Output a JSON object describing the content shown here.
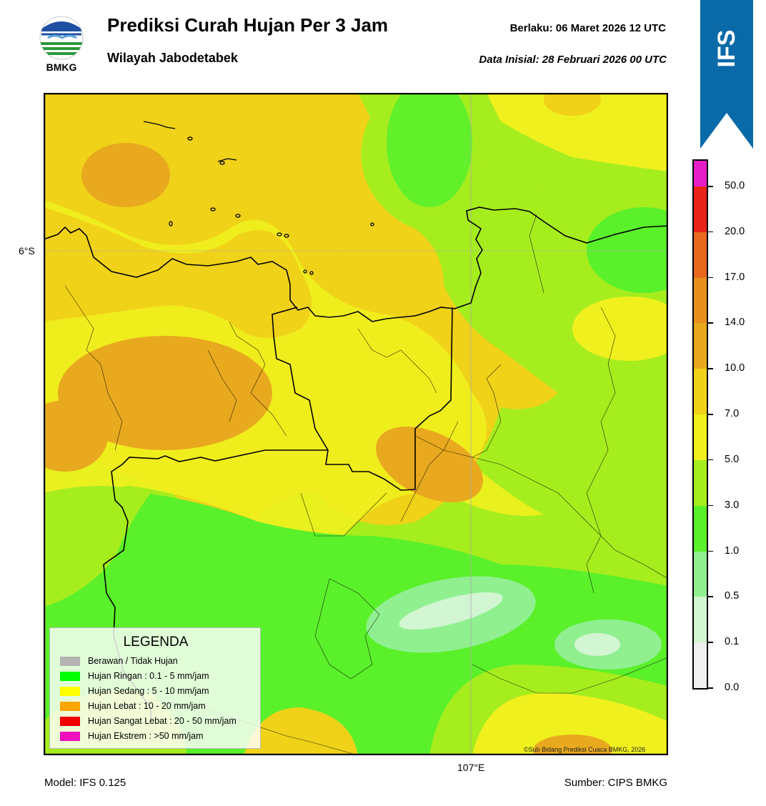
{
  "header": {
    "title": "Prediksi Curah Hujan Per 3 Jam",
    "subtitle": "Wilayah Jabodetabek",
    "valid": "Berlaku:  06 Maret 2026 12 UTC",
    "init": "Data Inisial:  28 Februari 2026 00 UTC"
  },
  "logo": {
    "text": "BMKG",
    "icon": "bmkg-logo-icon"
  },
  "ribbon": {
    "text": "IFS",
    "color": "#0a6aa8"
  },
  "map": {
    "lat_label": "6°S",
    "lon_label": "107°E",
    "copyright": "©Sub Bidang Prediksi Cuaca BMKG, 2026"
  },
  "footer": {
    "model": "Model: IFS 0.125",
    "source": "Sumber: CIPS BMKG"
  },
  "legend": {
    "title": "LEGENDA",
    "items": [
      {
        "label": "Berawan / Tidak Hujan",
        "color": "#b4b4b4"
      },
      {
        "label": "Hujan Ringan : 0.1 - 5 mm/jam",
        "color": "#00ff00"
      },
      {
        "label": "Hujan Sedang : 5 - 10 mm/jam",
        "color": "#ffff00"
      },
      {
        "label": "Hujan Lebat : 10 - 20 mm/jam",
        "color": "#ffa500"
      },
      {
        "label": "Hujan Sangat Lebat : 20 - 50 mm/jam",
        "color": "#ee0000"
      },
      {
        "label": "Hujan Ekstrem : >50 mm/jam",
        "color": "#ee11bb"
      }
    ]
  },
  "colorbar": {
    "labels": [
      "0.0",
      "0.1",
      "0.5",
      "1.0",
      "3.0",
      "5.0",
      "7.0",
      "10.0",
      "14.0",
      "17.0",
      "20.0",
      "50.0"
    ],
    "colors": [
      "#f0f0f0",
      "#d2f5d2",
      "#90f090",
      "#5af02a",
      "#a6ed1e",
      "#f0f01e",
      "#f0d219",
      "#e8a91e",
      "#e8901e",
      "#e8691e",
      "#e82319",
      "#e61ec8"
    ]
  }
}
